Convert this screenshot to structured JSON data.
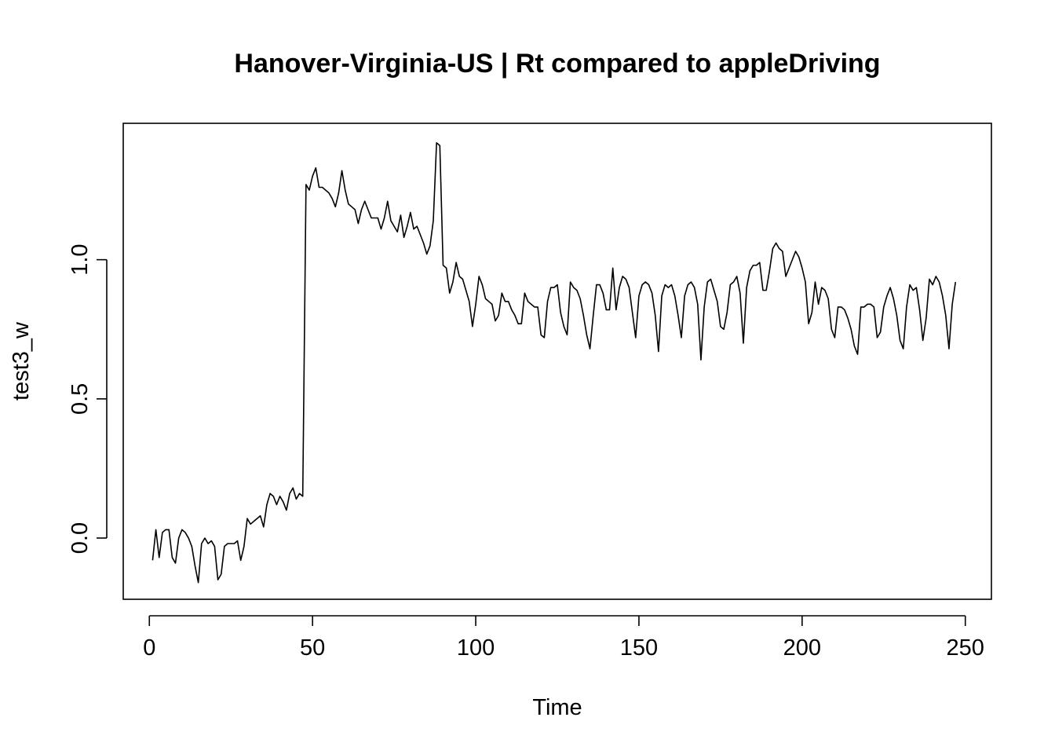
{
  "chart_data": {
    "type": "line",
    "title": "Hanover-Virginia-US | Rt compared to appleDriving",
    "xlabel": "Time",
    "ylabel": "test3_w",
    "xlim": [
      -8,
      258
    ],
    "ylim": [
      -0.22,
      1.49
    ],
    "x_ticks": [
      0,
      50,
      100,
      150,
      200,
      250
    ],
    "x_tick_labels": [
      "0",
      "50",
      "100",
      "150",
      "200",
      "250"
    ],
    "y_ticks": [
      0.0,
      0.5,
      1.0
    ],
    "y_tick_labels": [
      "0.0",
      "0.5",
      "1.0"
    ],
    "grid": false,
    "legend": "none",
    "line_color": "#000000",
    "series": [
      {
        "x_start": 1,
        "x_step": 1,
        "values": [
          -0.08,
          0.03,
          -0.07,
          0.02,
          0.03,
          0.03,
          -0.07,
          -0.09,
          0.0,
          0.03,
          0.02,
          0.0,
          -0.03,
          -0.1,
          -0.16,
          -0.02,
          0.0,
          -0.02,
          -0.01,
          -0.03,
          -0.15,
          -0.13,
          -0.03,
          -0.02,
          -0.02,
          -0.02,
          -0.01,
          -0.08,
          -0.03,
          0.07,
          0.05,
          0.06,
          0.07,
          0.08,
          0.04,
          0.12,
          0.16,
          0.15,
          0.12,
          0.15,
          0.13,
          0.1,
          0.16,
          0.18,
          0.14,
          0.16,
          0.15,
          1.27,
          1.25,
          1.3,
          1.33,
          1.26,
          1.26,
          1.25,
          1.24,
          1.22,
          1.19,
          1.24,
          1.32,
          1.25,
          1.2,
          1.19,
          1.18,
          1.13,
          1.18,
          1.21,
          1.18,
          1.15,
          1.15,
          1.15,
          1.11,
          1.15,
          1.21,
          1.14,
          1.12,
          1.1,
          1.16,
          1.08,
          1.12,
          1.17,
          1.11,
          1.12,
          1.09,
          1.06,
          1.02,
          1.05,
          1.14,
          1.42,
          1.41,
          0.98,
          0.97,
          0.88,
          0.92,
          0.99,
          0.94,
          0.93,
          0.89,
          0.85,
          0.76,
          0.84,
          0.94,
          0.91,
          0.86,
          0.85,
          0.84,
          0.78,
          0.8,
          0.88,
          0.85,
          0.85,
          0.82,
          0.8,
          0.77,
          0.77,
          0.88,
          0.85,
          0.84,
          0.83,
          0.83,
          0.73,
          0.72,
          0.85,
          0.9,
          0.9,
          0.91,
          0.81,
          0.76,
          0.73,
          0.92,
          0.9,
          0.89,
          0.86,
          0.8,
          0.73,
          0.68,
          0.8,
          0.91,
          0.91,
          0.88,
          0.82,
          0.82,
          0.97,
          0.82,
          0.9,
          0.94,
          0.93,
          0.9,
          0.81,
          0.72,
          0.87,
          0.91,
          0.92,
          0.91,
          0.88,
          0.8,
          0.67,
          0.87,
          0.91,
          0.9,
          0.91,
          0.87,
          0.8,
          0.72,
          0.87,
          0.91,
          0.92,
          0.9,
          0.84,
          0.64,
          0.83,
          0.92,
          0.93,
          0.89,
          0.85,
          0.76,
          0.75,
          0.81,
          0.91,
          0.92,
          0.94,
          0.88,
          0.7,
          0.9,
          0.96,
          0.98,
          0.98,
          0.99,
          0.89,
          0.89,
          0.96,
          1.04,
          1.06,
          1.04,
          1.03,
          0.94,
          0.97,
          1.0,
          1.03,
          1.01,
          0.97,
          0.92,
          0.77,
          0.81,
          0.92,
          0.84,
          0.9,
          0.89,
          0.86,
          0.75,
          0.72,
          0.83,
          0.83,
          0.82,
          0.79,
          0.75,
          0.69,
          0.66,
          0.83,
          0.83,
          0.84,
          0.84,
          0.83,
          0.72,
          0.74,
          0.83,
          0.87,
          0.9,
          0.86,
          0.8,
          0.71,
          0.68,
          0.83,
          0.91,
          0.89,
          0.9,
          0.82,
          0.71,
          0.79,
          0.93,
          0.91,
          0.94,
          0.92,
          0.87,
          0.8,
          0.68,
          0.84,
          0.92
        ]
      }
    ]
  }
}
